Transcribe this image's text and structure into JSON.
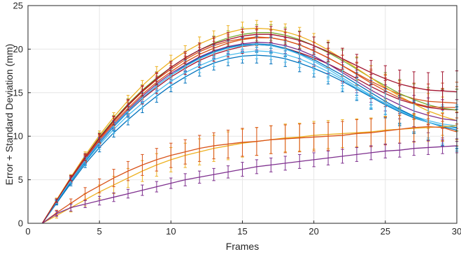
{
  "chart_data": {
    "type": "line",
    "title": "",
    "xlabel": "Frames",
    "ylabel": "Error + Standard Deviation (mm)",
    "xlim": [
      0,
      30
    ],
    "ylim": [
      0,
      25
    ],
    "x_ticks": [
      0,
      5,
      10,
      15,
      20,
      25,
      30
    ],
    "y_ticks": [
      0,
      5,
      10,
      15,
      20,
      25
    ],
    "x_tick_labels": [
      "0",
      "5",
      "10",
      "15",
      "20",
      "25",
      "30"
    ],
    "y_tick_labels": [
      "0",
      "5",
      "10",
      "15",
      "20",
      "25"
    ],
    "grid": true,
    "legend": "none",
    "error_bars": true,
    "x": [
      1,
      2,
      3,
      4,
      5,
      6,
      7,
      8,
      9,
      10,
      11,
      12,
      13,
      14,
      15,
      16,
      17,
      18,
      19,
      20,
      21,
      22,
      23,
      24,
      25,
      26,
      27,
      28,
      29,
      30
    ],
    "series": [
      {
        "color": "#0072BD",
        "values": [
          0,
          2.3,
          4.6,
          6.8,
          8.7,
          10.4,
          11.9,
          13.3,
          14.6,
          15.8,
          16.8,
          17.7,
          18.4,
          18.9,
          19.2,
          19.3,
          19.2,
          18.9,
          18.4,
          17.8,
          17.1,
          16.3,
          15.4,
          14.5,
          13.6,
          12.8,
          12.1,
          11.6,
          11.2,
          11.0
        ],
        "error": [
          0,
          0.2,
          0.3,
          0.4,
          0.5,
          0.5,
          0.6,
          0.6,
          0.7,
          0.7,
          0.7,
          0.8,
          0.8,
          0.8,
          0.8,
          0.9,
          0.9,
          0.9,
          1.0,
          1.0,
          1.1,
          1.2,
          1.3,
          1.4,
          1.5,
          1.6,
          1.8,
          2.0,
          2.2,
          2.4
        ]
      },
      {
        "color": "#4DBEEE",
        "values": [
          0,
          2.4,
          4.8,
          7.0,
          9.0,
          10.8,
          12.4,
          13.8,
          15.1,
          16.3,
          17.3,
          18.1,
          18.8,
          19.3,
          19.6,
          19.8,
          19.7,
          19.4,
          18.9,
          18.2,
          17.4,
          16.5,
          15.5,
          14.6,
          13.8,
          13.0,
          12.3,
          11.8,
          11.4,
          11.2
        ],
        "error": [
          0,
          0.2,
          0.3,
          0.4,
          0.5,
          0.5,
          0.6,
          0.6,
          0.7,
          0.7,
          0.7,
          0.8,
          0.8,
          0.8,
          0.8,
          0.9,
          0.9,
          0.9,
          1.0,
          1.0,
          1.1,
          1.2,
          1.3,
          1.4,
          1.5,
          1.6,
          1.8,
          2.0,
          2.2,
          2.4
        ]
      },
      {
        "color": "#A2142F",
        "values": [
          0,
          2.5,
          4.9,
          7.2,
          9.3,
          11.2,
          12.8,
          14.3,
          15.6,
          16.8,
          17.8,
          18.7,
          19.4,
          19.9,
          20.3,
          20.5,
          20.4,
          20.1,
          19.6,
          19.0,
          18.3,
          17.5,
          16.6,
          15.7,
          14.9,
          14.2,
          13.7,
          13.3,
          13.1,
          13.0
        ],
        "error": [
          0,
          0.2,
          0.3,
          0.4,
          0.5,
          0.5,
          0.6,
          0.6,
          0.7,
          0.7,
          0.7,
          0.8,
          0.8,
          0.8,
          0.8,
          0.9,
          0.9,
          0.9,
          1.0,
          1.0,
          1.1,
          1.2,
          1.3,
          1.4,
          1.5,
          1.6,
          1.8,
          2.0,
          2.2,
          2.4
        ]
      },
      {
        "color": "#D95319",
        "values": [
          0,
          2.6,
          5.0,
          7.4,
          9.6,
          11.5,
          13.2,
          14.8,
          16.2,
          17.4,
          18.5,
          19.4,
          20.1,
          20.7,
          21.1,
          21.3,
          21.3,
          21.0,
          20.5,
          19.8,
          19.0,
          18.1,
          17.2,
          16.3,
          15.5,
          14.8,
          14.3,
          14.0,
          13.9,
          13.8
        ],
        "error": [
          0,
          0.2,
          0.3,
          0.4,
          0.5,
          0.5,
          0.6,
          0.6,
          0.7,
          0.7,
          0.7,
          0.8,
          0.8,
          0.8,
          0.8,
          0.9,
          0.9,
          0.9,
          1.0,
          1.0,
          1.1,
          1.2,
          1.3,
          1.4,
          1.5,
          1.6,
          1.8,
          2.0,
          2.2,
          2.4
        ]
      },
      {
        "color": "#77AC30",
        "values": [
          0,
          2.6,
          5.2,
          7.6,
          9.9,
          11.9,
          13.7,
          15.3,
          16.7,
          17.9,
          19.0,
          19.9,
          20.7,
          21.3,
          21.7,
          21.9,
          21.9,
          21.6,
          21.1,
          20.4,
          19.6,
          18.7,
          17.7,
          16.7,
          15.8,
          14.9,
          14.2,
          13.6,
          13.2,
          13.0
        ],
        "error": [
          0,
          0.2,
          0.3,
          0.4,
          0.5,
          0.5,
          0.6,
          0.6,
          0.7,
          0.7,
          0.7,
          0.8,
          0.8,
          0.8,
          0.8,
          0.9,
          0.9,
          0.9,
          1.0,
          1.0,
          1.1,
          1.2,
          1.3,
          1.4,
          1.5,
          1.6,
          1.8,
          2.0,
          2.2,
          2.4
        ]
      },
      {
        "color": "#EDB120",
        "values": [
          0,
          2.7,
          5.3,
          7.8,
          10.1,
          12.2,
          14.1,
          15.8,
          17.3,
          18.6,
          19.7,
          20.6,
          21.3,
          21.9,
          22.3,
          22.4,
          22.3,
          22.0,
          21.5,
          20.8,
          19.9,
          18.9,
          17.8,
          16.7,
          15.6,
          14.6,
          13.7,
          12.9,
          12.3,
          11.8
        ],
        "error": [
          0,
          0.2,
          0.3,
          0.4,
          0.5,
          0.5,
          0.6,
          0.6,
          0.7,
          0.7,
          0.7,
          0.8,
          0.8,
          0.8,
          0.8,
          0.9,
          0.9,
          0.9,
          1.0,
          1.0,
          1.1,
          1.2,
          1.3,
          1.4,
          1.5,
          1.6,
          1.8,
          2.0,
          2.2,
          2.4
        ]
      },
      {
        "color": "#7E2F8E",
        "values": [
          0,
          2.5,
          5.0,
          7.3,
          9.4,
          11.3,
          13.0,
          14.6,
          16.0,
          17.2,
          18.2,
          19.1,
          19.8,
          20.3,
          20.6,
          20.8,
          20.7,
          20.4,
          19.9,
          19.2,
          18.3,
          17.3,
          16.3,
          15.3,
          14.4,
          13.6,
          12.9,
          12.4,
          12.0,
          11.8
        ],
        "error": [
          0,
          0.2,
          0.3,
          0.4,
          0.5,
          0.5,
          0.6,
          0.6,
          0.7,
          0.7,
          0.7,
          0.8,
          0.8,
          0.8,
          0.8,
          0.9,
          0.9,
          0.9,
          1.0,
          1.0,
          1.1,
          1.2,
          1.3,
          1.4,
          1.5,
          1.6,
          1.8,
          2.0,
          2.2,
          2.4
        ]
      },
      {
        "color": "#0072BD",
        "values": [
          0,
          2.4,
          4.8,
          7.1,
          9.2,
          11.1,
          12.8,
          14.4,
          15.8,
          17.0,
          18.1,
          19.0,
          19.7,
          20.2,
          20.5,
          20.6,
          20.5,
          20.1,
          19.5,
          18.8,
          17.9,
          17.0,
          16.0,
          15.0,
          14.0,
          13.1,
          12.3,
          11.6,
          11.1,
          10.7
        ],
        "error": [
          0,
          0.2,
          0.3,
          0.4,
          0.5,
          0.5,
          0.6,
          0.6,
          0.7,
          0.7,
          0.7,
          0.8,
          0.8,
          0.8,
          0.8,
          0.9,
          0.9,
          0.9,
          1.0,
          1.0,
          1.1,
          1.2,
          1.3,
          1.4,
          1.5,
          1.6,
          1.8,
          2.0,
          2.2,
          2.4
        ]
      },
      {
        "color": "#D95319",
        "values": [
          0,
          2.5,
          5.1,
          7.5,
          9.7,
          11.7,
          13.5,
          15.1,
          16.5,
          17.7,
          18.8,
          19.7,
          20.4,
          20.9,
          21.2,
          21.4,
          21.3,
          21.0,
          20.5,
          19.8,
          19.0,
          18.1,
          17.1,
          16.1,
          15.2,
          14.4,
          13.8,
          13.4,
          13.3,
          13.3
        ],
        "error": [
          0,
          0.2,
          0.3,
          0.4,
          0.5,
          0.5,
          0.6,
          0.6,
          0.7,
          0.7,
          0.7,
          0.8,
          0.8,
          0.8,
          0.8,
          0.9,
          0.9,
          0.9,
          1.0,
          1.0,
          1.1,
          1.2,
          1.3,
          1.4,
          1.5,
          1.6,
          1.8,
          2.0,
          2.2,
          2.4
        ]
      },
      {
        "color": "#4DBEEE",
        "values": [
          0,
          2.5,
          4.9,
          7.2,
          9.3,
          11.2,
          12.9,
          14.4,
          15.8,
          17.0,
          18.0,
          18.9,
          19.6,
          20.1,
          20.4,
          20.5,
          20.4,
          20.0,
          19.4,
          18.6,
          17.7,
          16.7,
          15.7,
          14.7,
          13.7,
          12.9,
          12.2,
          11.6,
          11.2,
          10.9
        ],
        "error": [
          0,
          0.2,
          0.3,
          0.4,
          0.5,
          0.5,
          0.6,
          0.6,
          0.7,
          0.7,
          0.7,
          0.8,
          0.8,
          0.8,
          0.8,
          0.9,
          0.9,
          0.9,
          1.0,
          1.0,
          1.1,
          1.2,
          1.3,
          1.4,
          1.5,
          1.6,
          1.8,
          2.0,
          2.2,
          2.4
        ]
      },
      {
        "color": "#A2142F",
        "values": [
          0,
          2.6,
          5.2,
          7.6,
          9.8,
          11.8,
          13.6,
          15.2,
          16.6,
          17.9,
          19.0,
          19.9,
          20.6,
          21.1,
          21.5,
          21.7,
          21.7,
          21.4,
          21.0,
          20.4,
          19.7,
          18.9,
          18.1,
          17.3,
          16.6,
          16.0,
          15.6,
          15.3,
          15.2,
          15.1
        ],
        "error": [
          0,
          0.2,
          0.3,
          0.4,
          0.5,
          0.5,
          0.6,
          0.6,
          0.7,
          0.7,
          0.7,
          0.8,
          0.8,
          0.8,
          0.8,
          0.9,
          0.9,
          0.9,
          1.0,
          1.0,
          1.1,
          1.2,
          1.3,
          1.4,
          1.5,
          1.6,
          1.8,
          2.0,
          2.2,
          2.4
        ]
      },
      {
        "color": "#EDB120",
        "values": [
          0,
          0.9,
          1.8,
          2.7,
          3.6,
          4.4,
          5.2,
          6.0,
          6.7,
          7.3,
          7.8,
          8.2,
          8.6,
          8.9,
          9.2,
          9.4,
          9.6,
          9.8,
          9.9,
          10.1,
          10.2,
          10.3,
          10.4,
          10.5,
          10.7,
          10.8,
          10.9,
          11.0,
          11.1,
          11.2
        ],
        "error": [
          0,
          0.3,
          0.5,
          0.7,
          0.8,
          1.0,
          1.1,
          1.2,
          1.3,
          1.4,
          1.4,
          1.5,
          1.5,
          1.6,
          1.6,
          1.6,
          1.6,
          1.6,
          1.6,
          1.6,
          1.6,
          1.6,
          1.6,
          1.6,
          1.6,
          1.6,
          1.6,
          1.6,
          1.6,
          1.6
        ]
      },
      {
        "color": "#D95319",
        "values": [
          0,
          1.2,
          2.3,
          3.4,
          4.3,
          5.2,
          6.0,
          6.7,
          7.3,
          7.8,
          8.2,
          8.6,
          8.9,
          9.1,
          9.3,
          9.4,
          9.6,
          9.7,
          9.8,
          9.9,
          10.0,
          10.1,
          10.3,
          10.4,
          10.6,
          10.8,
          11.0,
          11.1,
          11.0,
          10.5
        ],
        "error": [
          0,
          0.3,
          0.5,
          0.7,
          0.8,
          1.0,
          1.1,
          1.2,
          1.3,
          1.4,
          1.4,
          1.5,
          1.5,
          1.6,
          1.6,
          1.6,
          1.6,
          1.6,
          1.6,
          1.6,
          1.6,
          1.6,
          1.6,
          1.6,
          1.6,
          1.6,
          1.6,
          1.6,
          1.6,
          1.6
        ]
      },
      {
        "color": "#7E2F8E",
        "values": [
          0,
          1.1,
          1.8,
          2.2,
          2.6,
          3.0,
          3.4,
          3.8,
          4.2,
          4.6,
          5.0,
          5.3,
          5.6,
          5.9,
          6.2,
          6.5,
          6.7,
          6.9,
          7.1,
          7.3,
          7.5,
          7.7,
          7.9,
          8.1,
          8.3,
          8.4,
          8.6,
          8.7,
          8.8,
          8.9
        ],
        "error": [
          0,
          0.3,
          0.4,
          0.4,
          0.5,
          0.5,
          0.5,
          0.6,
          0.6,
          0.6,
          0.7,
          0.7,
          0.7,
          0.7,
          0.8,
          0.8,
          0.8,
          0.8,
          0.8,
          0.8,
          0.8,
          0.8,
          0.8,
          0.8,
          0.8,
          0.8,
          0.8,
          0.8,
          0.8,
          0.8
        ]
      }
    ]
  }
}
